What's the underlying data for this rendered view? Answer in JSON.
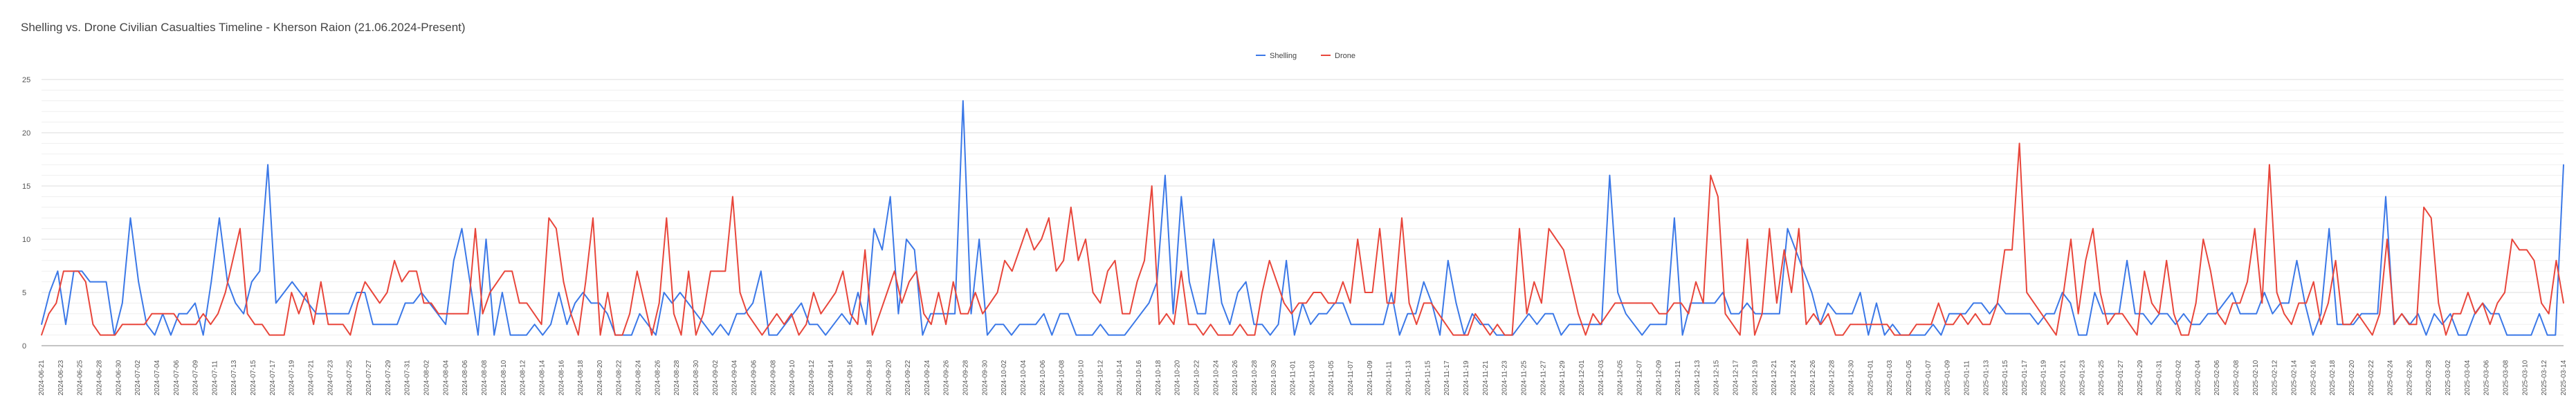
{
  "chart_data": {
    "type": "line",
    "title": "Shelling vs. Drone Civilian Casualties Timeline - Kherson Raion (21.06.2024-Present)",
    "legend_position": "top-center",
    "grid": true,
    "ylim": [
      0,
      25
    ],
    "yticks": [
      0,
      5,
      10,
      15,
      20,
      25
    ],
    "xlabel": "",
    "ylabel": "",
    "x_tick_labels": [
      "2024-06-21",
      "2024-06-23",
      "2024-06-25",
      "2024-06-28",
      "2024-06-30",
      "2024-07-02",
      "2024-07-04",
      "2024-07-06",
      "2024-07-09",
      "2024-07-11",
      "2024-07-13",
      "2024-07-15",
      "2024-07-17",
      "2024-07-19",
      "2024-07-21",
      "2024-07-23",
      "2024-07-25",
      "2024-07-27",
      "2024-07-29",
      "2024-07-31",
      "2024-08-02",
      "2024-08-04",
      "2024-08-06",
      "2024-08-08",
      "2024-08-10",
      "2024-08-12",
      "2024-08-14",
      "2024-08-16",
      "2024-08-18",
      "2024-08-20",
      "2024-08-22",
      "2024-08-24",
      "2024-08-26",
      "2024-08-28",
      "2024-08-30",
      "2024-09-02",
      "2024-09-04",
      "2024-09-06",
      "2024-09-08",
      "2024-09-10",
      "2024-09-12",
      "2024-09-14",
      "2024-09-16",
      "2024-09-18",
      "2024-09-20",
      "2024-09-22",
      "2024-09-24",
      "2024-09-26",
      "2024-09-28",
      "2024-09-30",
      "2024-10-02",
      "2024-10-04",
      "2024-10-06",
      "2024-10-08",
      "2024-10-10",
      "2024-10-12",
      "2024-10-14",
      "2024-10-16",
      "2024-10-18",
      "2024-10-20",
      "2024-10-22",
      "2024-10-24",
      "2024-10-26",
      "2024-10-28",
      "2024-10-30",
      "2024-11-01",
      "2024-11-03",
      "2024-11-05",
      "2024-11-07",
      "2024-11-09",
      "2024-11-11",
      "2024-11-13",
      "2024-11-15",
      "2024-11-17",
      "2024-11-19",
      "2024-11-21",
      "2024-11-23",
      "2024-11-25",
      "2024-11-27",
      "2024-11-29",
      "2024-12-01",
      "2024-12-03",
      "2024-12-05",
      "2024-12-07",
      "2024-12-09",
      "2024-12-11",
      "2024-12-13",
      "2024-12-15",
      "2024-12-17",
      "2024-12-19",
      "2024-12-21",
      "2024-12-24",
      "2024-12-26",
      "2024-12-28",
      "2024-12-30",
      "2025-01-01",
      "2025-01-03",
      "2025-01-05",
      "2025-01-07",
      "2025-01-09",
      "2025-01-11",
      "2025-01-13",
      "2025-01-15",
      "2025-01-17",
      "2025-01-19",
      "2025-01-21",
      "2025-01-23",
      "2025-01-25",
      "2025-01-27",
      "2025-01-29",
      "2025-01-31",
      "2025-02-02",
      "2025-02-04",
      "2025-02-06",
      "2025-02-08",
      "2025-02-10",
      "2025-02-12",
      "2025-02-14",
      "2025-02-16",
      "2025-02-18",
      "2025-02-20",
      "2025-02-22",
      "2025-02-24",
      "2025-02-26",
      "2025-02-28",
      "2025-03-02",
      "2025-03-04",
      "2025-03-06",
      "2025-03-08",
      "2025-03-10",
      "2025-03-12",
      "2025-03-14"
    ],
    "series": [
      {
        "name": "Shelling",
        "color": "#3b78e7",
        "values": [
          2,
          5,
          7,
          2,
          7,
          7,
          6,
          6,
          6,
          1,
          4,
          12,
          6,
          2,
          1,
          3,
          1,
          3,
          3,
          4,
          1,
          6,
          12,
          6,
          4,
          3,
          6,
          7,
          17,
          4,
          5,
          6,
          5,
          4,
          3,
          3,
          3,
          3,
          3,
          5,
          5,
          2,
          2,
          2,
          2,
          4,
          4,
          5,
          4,
          3,
          2,
          8,
          11,
          6,
          1,
          10,
          1,
          5,
          1,
          1,
          1,
          2,
          1,
          2,
          5,
          2,
          4,
          5,
          4,
          4,
          3,
          1,
          1,
          1,
          3,
          2,
          1,
          5,
          4,
          5,
          4,
          3,
          2,
          1,
          2,
          1,
          3,
          3,
          4,
          7,
          1,
          1,
          2,
          3,
          4,
          2,
          2,
          1,
          2,
          3,
          2,
          5,
          2,
          11,
          9,
          14,
          3,
          10,
          9,
          1,
          3,
          3,
          3,
          3,
          23,
          3,
          10,
          1,
          2,
          2,
          1,
          2,
          2,
          2,
          3,
          1,
          3,
          3,
          1,
          1,
          1,
          2,
          1,
          1,
          1,
          2,
          3,
          4,
          6,
          16,
          3,
          14,
          6,
          3,
          3,
          10,
          4,
          2,
          5,
          6,
          2,
          2,
          1,
          2,
          8,
          1,
          4,
          2,
          3,
          3,
          4,
          4,
          2,
          2,
          2,
          2,
          2,
          5,
          1,
          3,
          3,
          6,
          4,
          1,
          8,
          4,
          1,
          3,
          2,
          2,
          1,
          1,
          1,
          2,
          3,
          2,
          3,
          3,
          1,
          2,
          2,
          2,
          2,
          2,
          16,
          5,
          3,
          2,
          1,
          2,
          2,
          2,
          12,
          1,
          4,
          4,
          4,
          4,
          5,
          3,
          3,
          4,
          3,
          3,
          3,
          3,
          11,
          9,
          7,
          5,
          2,
          4,
          3,
          3,
          3,
          5,
          1,
          4,
          1,
          2,
          1,
          1,
          1,
          1,
          2,
          1,
          3,
          3,
          3,
          4,
          4,
          3,
          4,
          3,
          3,
          3,
          3,
          2,
          3,
          3,
          5,
          4,
          1,
          1,
          5,
          3,
          3,
          3,
          8,
          3,
          3,
          2,
          3,
          3,
          2,
          3,
          2,
          2,
          3,
          3,
          4,
          5,
          3,
          3,
          3,
          5,
          3,
          4,
          4,
          8,
          4,
          1,
          3,
          11,
          2,
          2,
          2,
          3,
          3,
          3,
          14,
          2,
          3,
          2,
          3,
          1,
          3,
          2,
          3,
          1,
          1,
          3,
          4,
          3,
          3,
          1,
          1,
          1,
          1,
          3,
          1,
          1,
          17
        ]
      },
      {
        "name": "Drone",
        "color": "#e8463b",
        "values": [
          1,
          3,
          4,
          7,
          7,
          7,
          6,
          2,
          1,
          1,
          1,
          2,
          2,
          2,
          2,
          3,
          3,
          3,
          3,
          2,
          2,
          2,
          3,
          2,
          3,
          5,
          8,
          11,
          3,
          2,
          2,
          1,
          1,
          1,
          5,
          3,
          5,
          2,
          6,
          2,
          2,
          2,
          1,
          4,
          6,
          5,
          4,
          5,
          8,
          6,
          7,
          7,
          4,
          4,
          3,
          3,
          3,
          3,
          3,
          11,
          3,
          5,
          6,
          7,
          7,
          4,
          4,
          3,
          2,
          12,
          11,
          6,
          3,
          1,
          6,
          12,
          1,
          5,
          1,
          1,
          3,
          7,
          4,
          1,
          4,
          12,
          3,
          1,
          7,
          1,
          3,
          7,
          7,
          7,
          14,
          5,
          3,
          2,
          1,
          2,
          3,
          2,
          3,
          1,
          2,
          5,
          3,
          4,
          5,
          7,
          3,
          2,
          9,
          1,
          3,
          5,
          7,
          4,
          6,
          7,
          3,
          2,
          5,
          2,
          6,
          3,
          3,
          5,
          3,
          4,
          5,
          8,
          7,
          9,
          11,
          9,
          10,
          12,
          7,
          8,
          13,
          8,
          10,
          5,
          4,
          7,
          8,
          3,
          3,
          6,
          8,
          15,
          2,
          3,
          2,
          7,
          2,
          2,
          1,
          2,
          1,
          1,
          1,
          2,
          1,
          1,
          5,
          8,
          6,
          4,
          3,
          4,
          4,
          5,
          5,
          4,
          4,
          6,
          4,
          10,
          5,
          5,
          11,
          4,
          4,
          12,
          4,
          2,
          4,
          4,
          3,
          2,
          1,
          1,
          1,
          3,
          2,
          1,
          2,
          1,
          1,
          11,
          3,
          6,
          4,
          11,
          10,
          9,
          6,
          3,
          1,
          3,
          2,
          3,
          4,
          4,
          4,
          4,
          4,
          4,
          3,
          3,
          4,
          4,
          3,
          6,
          4,
          16,
          14,
          3,
          2,
          1,
          10,
          1,
          3,
          11,
          4,
          9,
          5,
          11,
          2,
          3,
          2,
          3,
          1,
          1,
          2,
          2,
          2,
          2,
          2,
          2,
          1,
          1,
          1,
          2,
          2,
          2,
          4,
          2,
          2,
          3,
          2,
          3,
          2,
          2,
          4,
          9,
          9,
          19,
          5,
          4,
          3,
          2,
          1,
          5,
          10,
          3,
          8,
          11,
          5,
          2,
          3,
          3,
          2,
          1,
          7,
          4,
          3,
          8,
          3,
          1,
          1,
          4,
          10,
          7,
          3,
          2,
          4,
          4,
          6,
          11,
          4,
          17,
          5,
          3,
          2,
          4,
          4,
          6,
          2,
          4,
          8,
          2,
          2,
          3,
          2,
          1,
          3,
          10,
          2,
          3,
          2,
          2,
          13,
          12,
          4,
          1,
          3,
          3,
          5,
          3,
          4,
          2,
          4,
          5,
          10,
          9,
          9,
          8,
          4,
          3,
          8,
          4
        ]
      }
    ]
  }
}
